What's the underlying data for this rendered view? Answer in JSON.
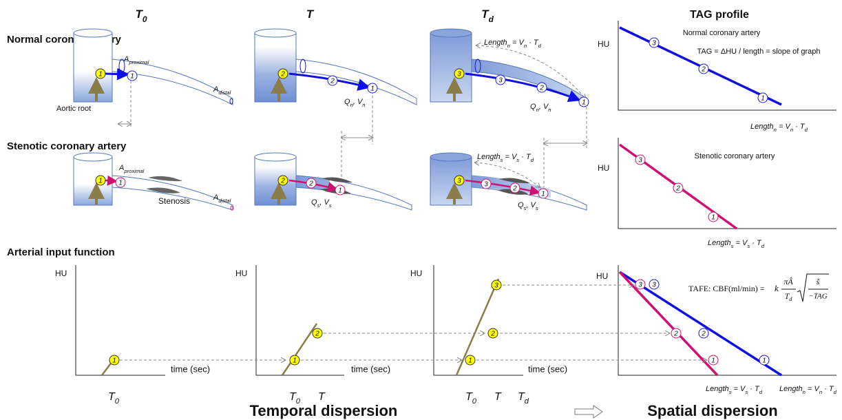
{
  "columns": {
    "t0": [
      "T",
      "0"
    ],
    "t": [
      "T"
    ],
    "td": [
      "T",
      "d"
    ],
    "tag_profile": "TAG profile"
  },
  "rows": {
    "normal": "Normal coronary artery",
    "stenotic": "Stenotic coronary artery",
    "aif": "Arterial input function"
  },
  "vessel_labels": {
    "a_proximal": [
      "A",
      "proximal"
    ],
    "a_distal": [
      "A",
      "distal"
    ],
    "aortic_root": "Aortic root",
    "stenosis": "Stenosis",
    "q_n_v_n": [
      "Q",
      "n",
      ", V",
      "n"
    ],
    "q_s_v_s": [
      "Q",
      "s",
      ", V",
      "s"
    ],
    "length_n": [
      "Length",
      "n",
      " = V",
      "n",
      " · T",
      "d"
    ],
    "length_s": [
      "Length",
      "s",
      " = V",
      "s",
      " · T",
      "d"
    ]
  },
  "tag_panels": {
    "hu": "HU",
    "normal_title": "Normal coronary artery",
    "tag_definition": "TAG = ΔHU / length = slope of graph",
    "stenotic_title": "Stenotic coronary artery",
    "formula": {
      "lhs": "TAFE: CBF(ml/min) = ",
      "k": "k",
      "num": "πÂ",
      "den": [
        "T",
        "d"
      ],
      "root_num": "ŝ",
      "root_den": "−TAG"
    }
  },
  "aif": {
    "hu": "HU",
    "time_axis": "time (sec)"
  },
  "badges": [
    "1",
    "2",
    "3"
  ],
  "footer": {
    "temporal": "Temporal dispersion",
    "spatial": "Spatial dispersion"
  }
}
